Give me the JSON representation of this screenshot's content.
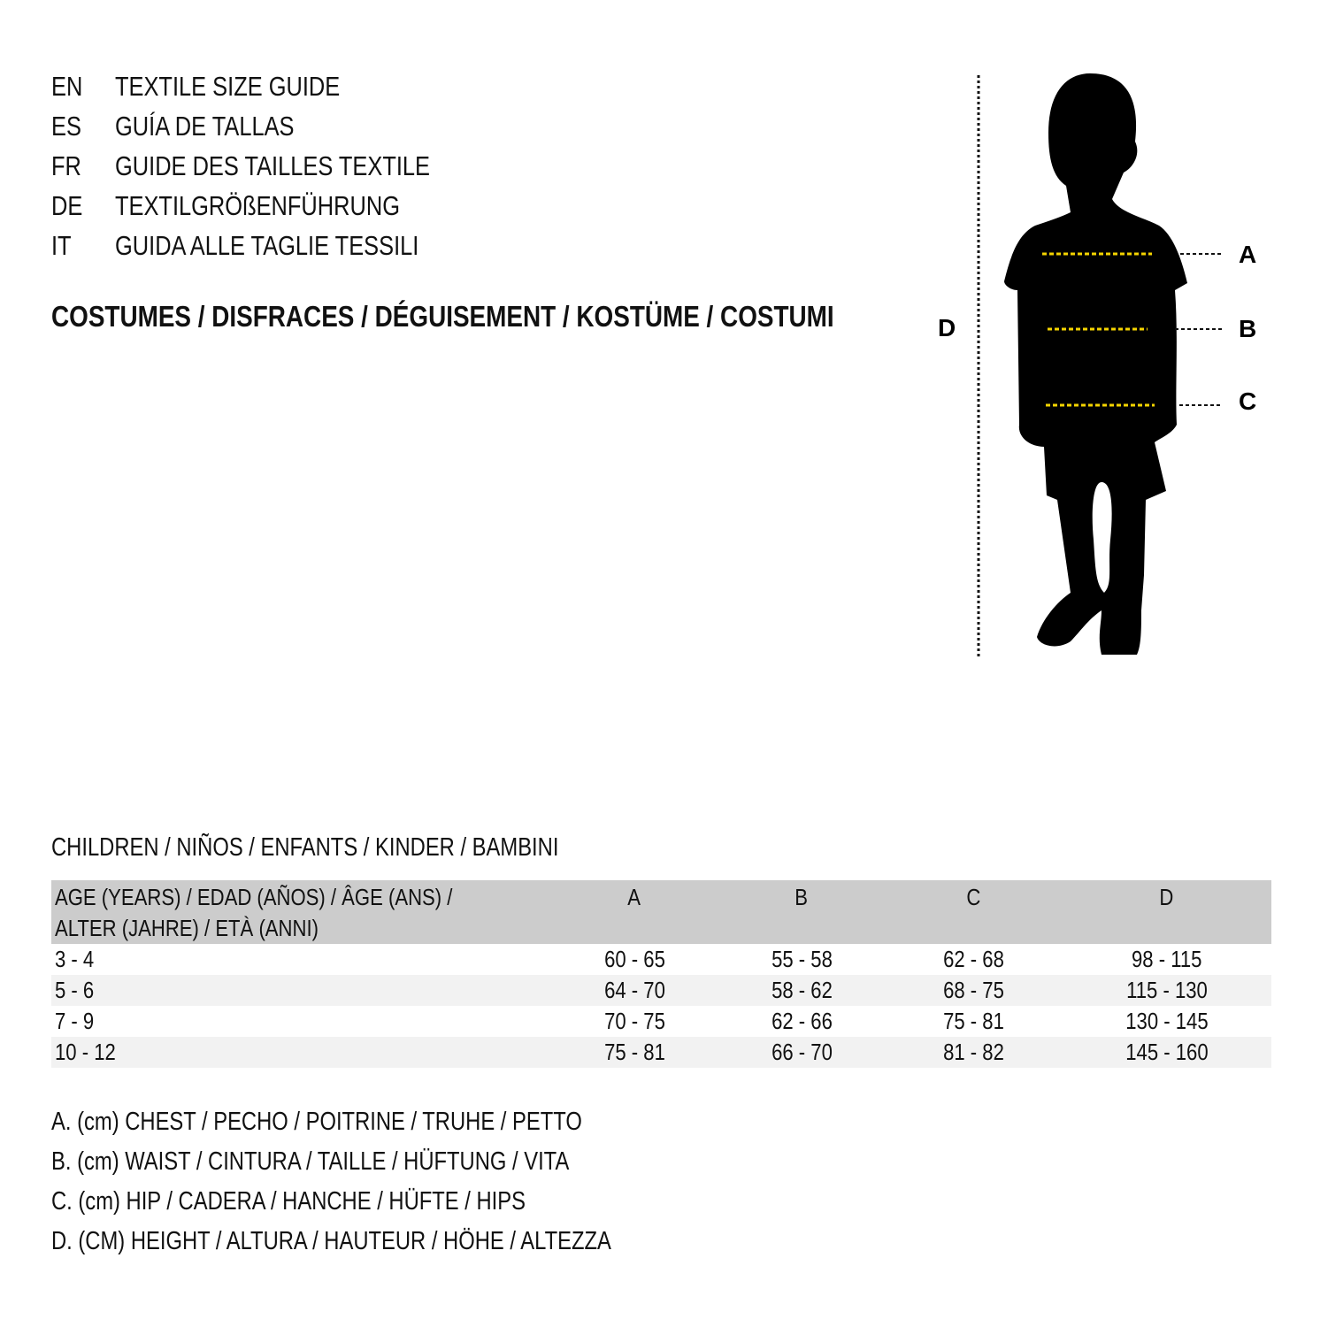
{
  "languages": [
    {
      "code": "EN",
      "text": "TEXTILE SIZE GUIDE"
    },
    {
      "code": "ES",
      "text": "GUÍA DE TALLAS"
    },
    {
      "code": "FR",
      "text": "GUIDE DES TAILLES TEXTILE"
    },
    {
      "code": "DE",
      "text": "TEXTILGRÖßENFÜHRUNG"
    },
    {
      "code": "IT",
      "text": "GUIDA ALLE TAGLIE TESSILI"
    }
  ],
  "heading": "COSTUMES / DISFRACES / DÉGUISEMENT / KOSTÜME / COSTUMI",
  "figure": {
    "labels": {
      "a": "A",
      "b": "B",
      "c": "C",
      "d": "D"
    },
    "measure_line_color": "#f5d400"
  },
  "section_title": "CHILDREN / NIÑOS / ENFANTS / KINDER / BAMBINI",
  "table": {
    "headers": {
      "age_line1": "AGE (YEARS) / EDAD (AÑOS) / ÂGE (ANS) /",
      "age_line2": "ALTER (JAHRE) / ETÀ (ANNI)",
      "a": "A",
      "b": "B",
      "c": "C",
      "d": "D"
    },
    "rows": [
      {
        "age": "3 - 4",
        "a": "60 - 65",
        "b": "55 - 58",
        "c": "62 - 68",
        "d": "98 - 115"
      },
      {
        "age": "5 - 6",
        "a": "64 - 70",
        "b": "58 - 62",
        "c": "68 - 75",
        "d": "115 - 130"
      },
      {
        "age": "7 - 9",
        "a": "70 - 75",
        "b": "62 - 66",
        "c": "75 - 81",
        "d": "130 - 145"
      },
      {
        "age": "10 - 12",
        "a": "75 - 81",
        "b": "66 - 70",
        "c": "81 - 82",
        "d": "145 - 160"
      }
    ],
    "header_bg": "#cccccc",
    "stripe_bg": "#f2f2f2"
  },
  "legend": [
    "A. (cm) CHEST / PECHO / POITRINE / TRUHE / PETTO",
    "B. (cm) WAIST / CINTURA / TAILLE / HÜFTUNG / VITA",
    "C. (cm) HIP / CADERA / HANCHE / HÜFTE / HIPS",
    "D. (CM) HEIGHT / ALTURA / HAUTEUR / HÖHE / ALTEZZA"
  ]
}
